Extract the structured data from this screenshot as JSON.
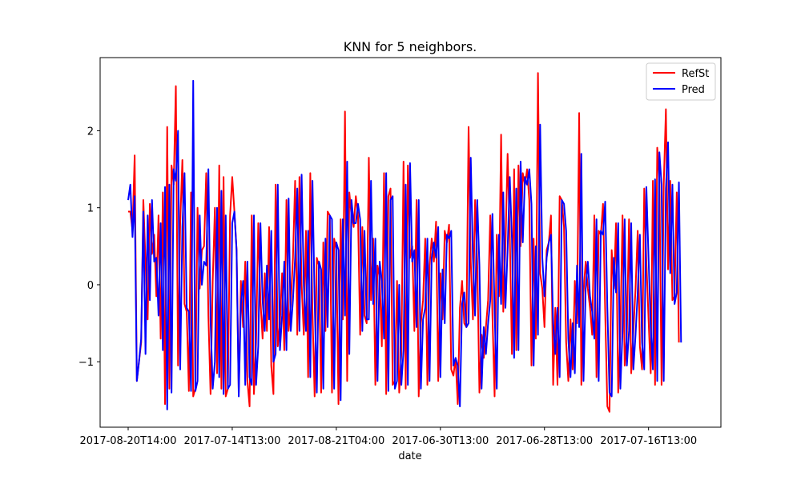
{
  "chart_data": {
    "type": "line",
    "title": "KNN for 5 neighbors.",
    "xlabel": "date",
    "ylabel": "",
    "ylim": [
      -1.85,
      2.95
    ],
    "y_ticks": [
      -1,
      0,
      1,
      2
    ],
    "x_ticks": [
      {
        "index": 0,
        "label": "2017-08-20T14:00"
      },
      {
        "index": 48,
        "label": "2017-07-14T13:00"
      },
      {
        "index": 96,
        "label": "2017-08-21T04:00"
      },
      {
        "index": 144,
        "label": "2017-06-30T13:00"
      },
      {
        "index": 192,
        "label": "2017-06-28T13:00"
      },
      {
        "index": 240,
        "label": "2017-07-16T13:00"
      }
    ],
    "legend": {
      "position": "top-right"
    },
    "series": [
      {
        "name": "RefSt",
        "color": "#ff0000",
        "values": [
          0.95,
          0.95,
          0.7,
          1.68,
          -1.25,
          -1.0,
          -0.75,
          1.1,
          0.3,
          -0.45,
          1.05,
          0.4,
          0.65,
          -0.15,
          0.9,
          -0.7,
          1.2,
          -1.55,
          2.05,
          -1.35,
          1.55,
          1.3,
          2.58,
          -1.05,
          0.8,
          1.62,
          -0.25,
          -0.35,
          -1.38,
          1.2,
          -1.45,
          -1.35,
          1.0,
          -0.05,
          0.45,
          0.5,
          1.45,
          -0.4,
          -1.42,
          0.05,
          1.0,
          -1.15,
          1.55,
          -1.35,
          1.4,
          -1.45,
          -1.35,
          0.9,
          1.4,
          0.95,
          0.45,
          -1.4,
          0.05,
          -0.55,
          0.3,
          -1.25,
          -1.58,
          0.9,
          -1.42,
          -0.75,
          0.8,
          -0.2,
          -0.7,
          0.15,
          -0.6,
          0.75,
          -1.05,
          -1.42,
          1.3,
          -0.8,
          -0.5,
          0.15,
          -0.85,
          1.1,
          -0.6,
          -0.25,
          0.35,
          1.35,
          -0.65,
          1.4,
          0.0,
          -0.65,
          0.7,
          -1.2,
          1.45,
          -0.35,
          -1.45,
          0.35,
          0.25,
          -1.4,
          0.55,
          -0.6,
          0.95,
          0.9,
          -1.4,
          0.6,
          0.45,
          -1.55,
          0.85,
          -0.45,
          2.25,
          -1.25,
          1.2,
          0.9,
          0.75,
          1.15,
          0.9,
          -0.65,
          0.75,
          -0.4,
          -0.5,
          1.65,
          -0.2,
          0.6,
          -1.3,
          0.25,
          0.1,
          -0.8,
          1.45,
          -1.42,
          1.15,
          1.25,
          -1.3,
          -1.25,
          0.05,
          -1.4,
          -0.9,
          1.6,
          -1.35,
          1.55,
          0.35,
          0.5,
          -0.6,
          1.1,
          -1.45,
          -0.5,
          -0.2,
          0.6,
          -1.3,
          0.25,
          0.6,
          0.3,
          0.82,
          -1.25,
          0.15,
          -0.45,
          0.7,
          0.55,
          0.78,
          -1.1,
          -1.18,
          -0.95,
          -1.55,
          -0.3,
          0.05,
          -0.5,
          -0.55,
          2.05,
          0.3,
          -0.45,
          1.1,
          0.3,
          -1.4,
          -0.65,
          -0.95,
          -0.55,
          -0.2,
          0.9,
          -0.4,
          -1.45,
          0.65,
          -0.15,
          1.95,
          -0.35,
          0.5,
          1.7,
          0.65,
          -0.9,
          1.5,
          -0.85,
          1.55,
          0.5,
          1.45,
          1.3,
          1.5,
          1.1,
          -1.05,
          0.6,
          -0.7,
          2.75,
          0.15,
          -0.05,
          -0.55,
          0.45,
          0.55,
          0.9,
          -1.3,
          -0.3,
          -1.3,
          1.15,
          1.1,
          0.75,
          -0.75,
          -1.25,
          -0.45,
          -1.1,
          0.05,
          -0.5,
          2.23,
          -1.3,
          -0.1,
          0.3,
          -0.05,
          -0.3,
          -0.65,
          0.9,
          -1.2,
          0.7,
          0.65,
          1.05,
          -0.35,
          -1.58,
          -1.65,
          0.45,
          -0.05,
          0.8,
          -1.4,
          -0.6,
          0.9,
          -1.05,
          -0.65,
          0.85,
          -1.15,
          -0.6,
          -0.05,
          0.7,
          -0.8,
          -1.1,
          1.25,
          0.3,
          -0.45,
          -1.15,
          1.35,
          -1.3,
          1.78,
          1.35,
          -1.3,
          1.3,
          2.28,
          0.2,
          1.35,
          -0.2,
          -0.15,
          1.2,
          -0.75
        ]
      },
      {
        "name": "Pred",
        "color": "#0000ff",
        "values": [
          1.1,
          1.3,
          0.62,
          1.15,
          -1.25,
          -1.0,
          -0.7,
          0.95,
          -0.9,
          0.9,
          -0.2,
          1.1,
          0.3,
          0.35,
          -0.4,
          0.8,
          -0.85,
          1.27,
          -1.62,
          1.3,
          -1.4,
          1.5,
          1.35,
          2.0,
          -1.1,
          0.75,
          1.45,
          -0.3,
          -0.35,
          -1.38,
          2.65,
          -1.38,
          -1.25,
          0.9,
          0.0,
          0.3,
          0.25,
          1.5,
          -0.45,
          -1.35,
          -1.0,
          1.0,
          -1.2,
          1.22,
          -1.42,
          0.9,
          -1.35,
          -1.3,
          0.8,
          0.95,
          0.45,
          -1.45,
          -0.25,
          0.05,
          -1.3,
          0.3,
          -1.2,
          -1.3,
          0.9,
          -1.3,
          -0.8,
          0.8,
          -0.2,
          -0.6,
          0.25,
          -0.45,
          0.7,
          -1.0,
          -0.9,
          1.3,
          -0.85,
          -0.4,
          0.3,
          -0.85,
          1.12,
          -0.6,
          -0.2,
          0.35,
          1.25,
          -0.6,
          1.43,
          0.0,
          -0.6,
          0.7,
          -1.2,
          1.35,
          -0.2,
          -1.4,
          0.3,
          0.2,
          -1.35,
          0.6,
          -0.55,
          0.9,
          0.85,
          -1.35,
          0.55,
          0.45,
          -1.5,
          0.85,
          -0.4,
          1.6,
          -0.9,
          1.1,
          0.8,
          0.8,
          1.05,
          0.85,
          -0.6,
          0.7,
          -0.45,
          -0.45,
          1.35,
          -0.25,
          0.6,
          -1.25,
          0.3,
          0.05,
          -0.7,
          1.45,
          -1.38,
          1.1,
          1.15,
          -1.35,
          -1.25,
          0.0,
          -1.3,
          -0.85,
          1.3,
          -1.3,
          1.58,
          0.3,
          0.45,
          -0.55,
          1.1,
          -1.35,
          -0.45,
          -0.3,
          0.6,
          -1.25,
          0.35,
          0.55,
          0.35,
          0.75,
          -1.2,
          0.2,
          -0.5,
          0.65,
          0.6,
          0.7,
          -1.05,
          -0.95,
          -1.05,
          -1.58,
          -0.25,
          -0.1,
          -0.55,
          -0.5,
          1.65,
          0.35,
          -0.4,
          1.1,
          0.25,
          -1.35,
          -0.55,
          -0.9,
          -0.5,
          -0.2,
          0.92,
          -0.35,
          -1.35,
          0.65,
          -0.25,
          1.2,
          -0.3,
          0.45,
          1.4,
          0.6,
          -0.95,
          1.25,
          -0.85,
          1.6,
          0.55,
          1.4,
          1.3,
          1.5,
          1.05,
          -1.05,
          0.5,
          -0.65,
          2.08,
          0.35,
          -0.15,
          0.35,
          0.55,
          0.65,
          -0.5,
          -0.9,
          -0.3,
          -1.2,
          1.1,
          1.05,
          0.7,
          -0.7,
          -1.2,
          -0.5,
          -1.15,
          0.25,
          -0.55,
          1.7,
          -1.25,
          -0.05,
          0.3,
          -0.15,
          -0.35,
          -0.7,
          0.85,
          -1.25,
          0.7,
          0.65,
          1.08,
          -0.3,
          -1.4,
          -1.45,
          0.35,
          -0.1,
          0.8,
          -1.35,
          -0.6,
          0.85,
          -1.05,
          -0.6,
          0.8,
          -1.1,
          -0.65,
          -0.1,
          0.65,
          -0.75,
          -1.1,
          1.27,
          0.35,
          -0.55,
          -1.1,
          1.37,
          -1.25,
          1.72,
          1.3,
          -1.25,
          1.25,
          1.85,
          0.15,
          1.3,
          -0.25,
          -0.1,
          1.33,
          -0.75
        ]
      }
    ]
  }
}
